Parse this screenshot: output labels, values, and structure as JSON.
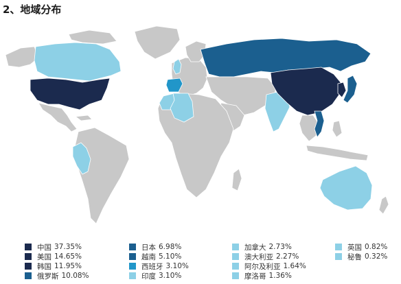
{
  "title": "2、地域分布",
  "colors": {
    "land_default": "#c8c8c8",
    "ocean": "#ffffff",
    "tier1": "#1b2a4e",
    "tier2": "#1b5f8f",
    "tier3": "#2196c9",
    "tier4": "#8dd0e6"
  },
  "legend": [
    {
      "name": "中国",
      "pct": "37.35%",
      "tier": "tier1"
    },
    {
      "name": "美国",
      "pct": "14.65%",
      "tier": "tier1"
    },
    {
      "name": "韩国",
      "pct": "11.95%",
      "tier": "tier1"
    },
    {
      "name": "俄罗斯",
      "pct": "10.08%",
      "tier": "tier2"
    },
    {
      "name": "日本",
      "pct": "6.98%",
      "tier": "tier2"
    },
    {
      "name": "越南",
      "pct": "5.10%",
      "tier": "tier2"
    },
    {
      "name": "西班牙",
      "pct": "3.10%",
      "tier": "tier3"
    },
    {
      "name": "印度",
      "pct": "3.10%",
      "tier": "tier4"
    },
    {
      "name": "加拿大",
      "pct": "2.73%",
      "tier": "tier4"
    },
    {
      "name": "澳大利亚",
      "pct": "2.27%",
      "tier": "tier4"
    },
    {
      "name": "阿尔及利亚",
      "pct": "1.64%",
      "tier": "tier4"
    },
    {
      "name": "摩洛哥",
      "pct": "1.36%",
      "tier": "tier4"
    },
    {
      "name": "英国",
      "pct": "0.82%",
      "tier": "tier4"
    },
    {
      "name": "秘鲁",
      "pct": "0.32%",
      "tier": "tier4"
    }
  ]
}
